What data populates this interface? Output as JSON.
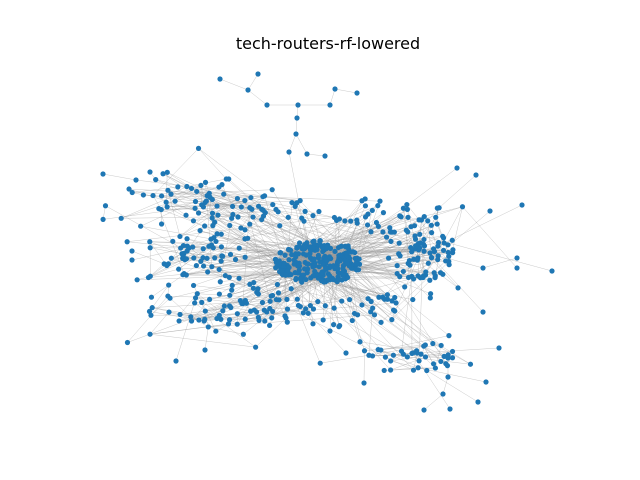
{
  "figure": {
    "title": "tech-routers-rf-lowered"
  },
  "style": {
    "node_color": "#1f77b4",
    "edge_color": "#999999",
    "background": "#ffffff"
  }
}
